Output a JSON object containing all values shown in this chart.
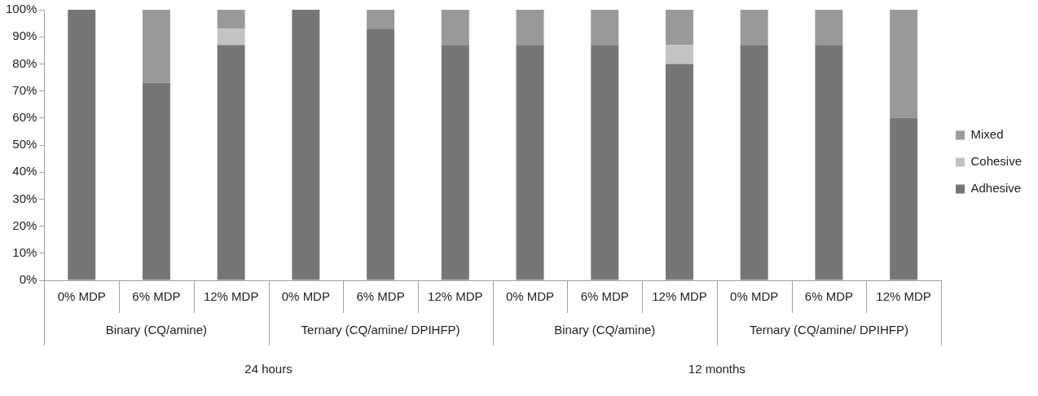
{
  "chart_data": {
    "type": "bar",
    "stacked": true,
    "legend": "right",
    "grid": false,
    "categories": [
      "0% MDP",
      "6% MDP",
      "12% MDP",
      "0% MDP",
      "6% MDP",
      "12% MDP",
      "0% MDP",
      "6% MDP",
      "12% MDP",
      "0% MDP",
      "6% MDP",
      "12% MDP"
    ],
    "series": [
      {
        "name": "Adhesive",
        "color": "#767676",
        "values": [
          100,
          73,
          87,
          100,
          93,
          87,
          87,
          87,
          80,
          87,
          87,
          60
        ]
      },
      {
        "name": "Cohesive",
        "color": "#c3c3c3",
        "values": [
          0,
          0,
          6,
          0,
          0,
          0,
          0,
          0,
          7,
          0,
          0,
          0
        ]
      },
      {
        "name": "Mixed",
        "color": "#999999",
        "values": [
          0,
          27,
          7,
          0,
          7,
          13,
          13,
          13,
          13,
          13,
          13,
          40
        ]
      }
    ],
    "ylim": [
      0,
      100
    ],
    "yticks": [
      {
        "value": 0,
        "label": "0%"
      },
      {
        "value": 10,
        "label": "10%"
      },
      {
        "value": 20,
        "label": "20%"
      },
      {
        "value": 30,
        "label": "30%"
      },
      {
        "value": 40,
        "label": "40%"
      },
      {
        "value": 50,
        "label": "50%"
      },
      {
        "value": 60,
        "label": "60%"
      },
      {
        "value": 70,
        "label": "70%"
      },
      {
        "value": 80,
        "label": "80%"
      },
      {
        "value": 90,
        "label": "90%"
      },
      {
        "value": 100,
        "label": "100%"
      }
    ],
    "annotations": [
      "Binary (CQ/amine)",
      "Ternary (CQ/amine/ DPIHFP)",
      "Binary (CQ/amine)",
      "Ternary (CQ/amine/ DPIHFP)",
      "24 hours",
      "12 months"
    ]
  }
}
